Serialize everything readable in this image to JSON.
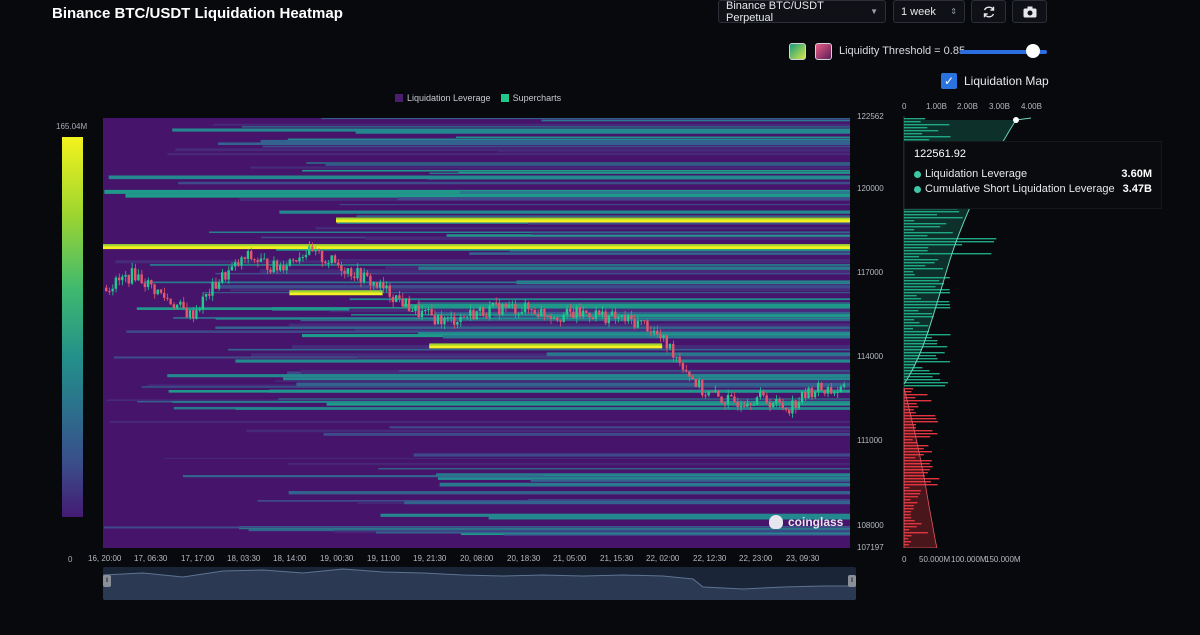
{
  "header": {
    "title": "Binance BTC/USDT Liquidation Heatmap",
    "exchange_value": "Binance BTC/USDT Perpetual",
    "range_value": "1 week",
    "threshold_label": "Liquidity Threshold = 0.85",
    "liquidation_map_label": "Liquidation Map"
  },
  "legend": {
    "items": [
      {
        "label": "Liquidation Leverage",
        "color": "#4a1d6e"
      },
      {
        "label": "Supercharts",
        "color": "#20c98a"
      }
    ]
  },
  "colorbar": {
    "max": "165.04M",
    "min": "0"
  },
  "price_axis": [
    "122562",
    "120000",
    "117000",
    "114000",
    "111000",
    "108000",
    "107197"
  ],
  "time_axis": [
    "16, 20:00",
    "17, 06:30",
    "17, 17:00",
    "18, 03:30",
    "18, 14:00",
    "19, 00:30",
    "19, 11:00",
    "19, 21:30",
    "20, 08:00",
    "20, 18:30",
    "21, 05:00",
    "21, 15:30",
    "22, 02:00",
    "22, 12:30",
    "22, 23:00",
    "23, 09:30"
  ],
  "side_axis_top": [
    "0",
    "1.00B",
    "2.00B",
    "3.00B",
    "4.00B"
  ],
  "side_axis_bottom": [
    "0",
    "50.000M",
    "100.000M",
    "150.000M"
  ],
  "tooltip": {
    "price": "122561.92",
    "rows": [
      {
        "label": "Liquidation Leverage",
        "value": "3.60M"
      },
      {
        "label": "Cumulative Short Liquidation Leverage",
        "value": "3.47B"
      }
    ]
  },
  "watermark": "coinglass",
  "chart_data": {
    "type": "heatmap",
    "title": "Binance BTC/USDT Liquidation Heatmap",
    "price_range": [
      107197,
      122562
    ],
    "color_scale": [
      0,
      165040000
    ],
    "price_series_approx": [
      116500,
      117000,
      116200,
      115500,
      116800,
      117600,
      117200,
      117800,
      117400,
      116900,
      116300,
      115600,
      115300,
      115600,
      115800,
      115700,
      115500,
      115600,
      115400,
      115200,
      114200,
      112800,
      112400,
      112600,
      112200,
      112900,
      112800
    ],
    "bright_bands": [
      {
        "price": 118900,
        "start": "19, 00:30",
        "end": "23, 09:30"
      },
      {
        "price": 117950,
        "start": "16, 20:00",
        "end": "23, 09:30"
      },
      {
        "price": 116300,
        "start": "18, 14:00",
        "end": "19, 11:00"
      },
      {
        "price": 114400,
        "start": "19, 21:30",
        "end": "22, 02:00"
      }
    ]
  }
}
